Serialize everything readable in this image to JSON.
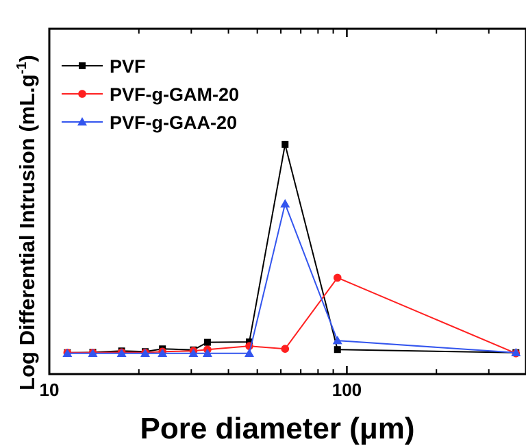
{
  "chart_data": {
    "type": "line",
    "title": "",
    "xlabel": "Pore diameter (μm)",
    "ylabel": "Log Differential Intrusion (mL.g",
    "ylabel_superscript": "-1",
    "ylabel_suffix": ")",
    "xscale": "log",
    "xlim": [
      10,
      400
    ],
    "ylim": [
      0,
      1
    ],
    "xticks": [
      10,
      100
    ],
    "xtick_labels": [
      "10",
      "100"
    ],
    "yticks_shown": false,
    "grid": false,
    "legend_position": "top-left",
    "series": [
      {
        "name": "PVF",
        "color": "#000000",
        "marker": "square",
        "x": [
          11.5,
          14,
          17.5,
          21,
          24,
          30.5,
          34,
          47,
          62,
          93,
          370
        ],
        "y": [
          0.062,
          0.063,
          0.067,
          0.065,
          0.073,
          0.07,
          0.092,
          0.093,
          0.665,
          0.071,
          0.062
        ]
      },
      {
        "name": "PVF-g-GAM-20",
        "color": "#ff2020",
        "marker": "circle",
        "x": [
          11.5,
          14,
          17.5,
          21,
          24,
          30.5,
          34,
          47,
          62,
          93,
          370
        ],
        "y": [
          0.062,
          0.062,
          0.063,
          0.062,
          0.065,
          0.067,
          0.071,
          0.081,
          0.073,
          0.279,
          0.06
        ]
      },
      {
        "name": "PVF-g-GAA-20",
        "color": "#3355ee",
        "marker": "triangle",
        "x": [
          11.5,
          14,
          17.5,
          21,
          24,
          30.5,
          34,
          47,
          62,
          93,
          370
        ],
        "y": [
          0.06,
          0.06,
          0.06,
          0.06,
          0.06,
          0.06,
          0.06,
          0.06,
          0.493,
          0.097,
          0.062
        ]
      }
    ]
  }
}
